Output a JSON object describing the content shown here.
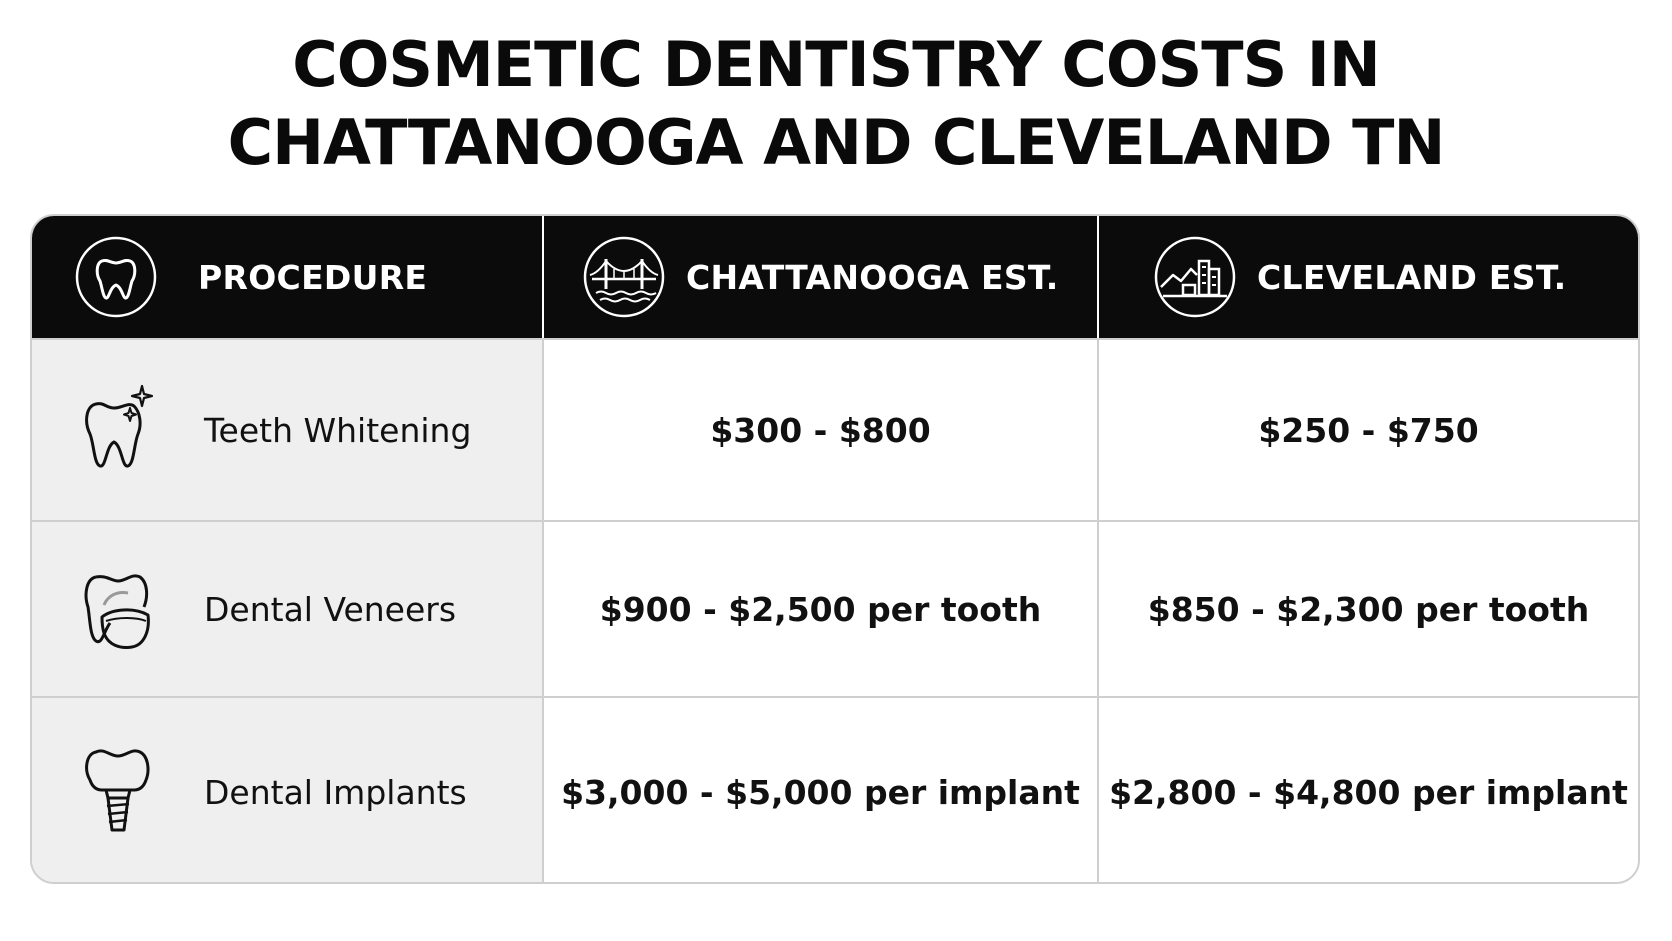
{
  "title": {
    "line1": "COSMETIC DENTISTRY COSTS IN",
    "line2": "CHATTANOOGA AND CLEVELAND TN"
  },
  "columns": [
    {
      "label": "PROCEDURE",
      "icon": "tooth-icon"
    },
    {
      "label": "CHATTANOOGA EST.",
      "icon": "bridge-icon"
    },
    {
      "label": "CLEVELAND EST.",
      "icon": "city-skyline-icon"
    }
  ],
  "rows": [
    {
      "procedure": "Teeth Whitening",
      "icon": "sparkling-tooth-icon",
      "chattanooga": "$300 - $800",
      "cleveland": "$250 - $750"
    },
    {
      "procedure": "Dental Veneers",
      "icon": "veneer-tooth-icon",
      "chattanooga": "$900 - $2,500 per tooth",
      "cleveland": "$850 - $2,300 per tooth"
    },
    {
      "procedure": "Dental Implants",
      "icon": "dental-implant-icon",
      "chattanooga": "$3,000 - $5,000 per implant",
      "cleveland": "$2,800 - $4,800 per implant"
    }
  ],
  "colors": {
    "header_bg": "#0b0b0b",
    "header_text": "#ffffff",
    "procedure_col_bg": "#efefef",
    "grid_line": "#cfcfcf"
  }
}
